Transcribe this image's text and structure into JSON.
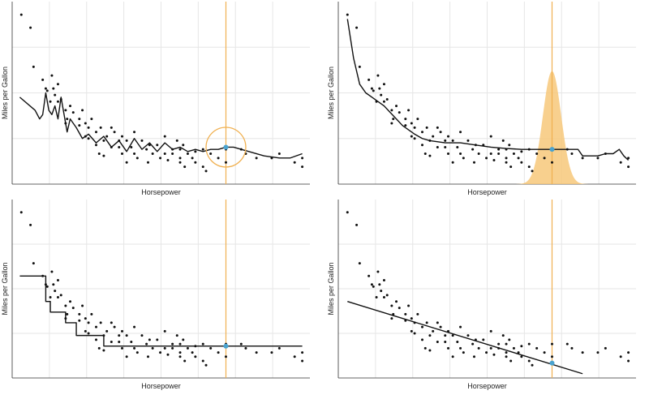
{
  "colors": {
    "points": "#111111",
    "fit_line": "#111111",
    "query_line": "#f0b050",
    "query_point": "#4aa3cf",
    "kernel_fill": "#f7c87a",
    "grid": "#e6e6e6",
    "axis": "#333333"
  },
  "chart_data": [
    {
      "type": "scatter",
      "title": "",
      "xlabel": "Horsepower",
      "ylabel": "Miles per Gallon",
      "xlim": [
        40,
        235
      ],
      "ylim": [
        7,
        49
      ],
      "grid": true,
      "method": "k-nearest neighbours average",
      "query_x": 180,
      "query_y": 15.5,
      "neighbourhood_radius_hp": 13,
      "points": {
        "x": [
          46,
          52,
          54,
          60,
          62,
          63,
          65,
          66,
          67,
          68,
          70,
          70,
          72,
          75,
          75,
          76,
          78,
          80,
          84,
          84,
          86,
          88,
          88,
          90,
          90,
          92,
          95,
          95,
          97,
          98,
          100,
          100,
          102,
          105,
          105,
          107,
          110,
          110,
          112,
          112,
          115,
          115,
          118,
          120,
          120,
          122,
          125,
          128,
          129,
          130,
          132,
          135,
          137,
          140,
          140,
          142,
          145,
          145,
          148,
          150,
          150,
          150,
          152,
          153,
          155,
          158,
          160,
          160,
          165,
          165,
          167,
          170,
          175,
          180,
          180,
          190,
          193,
          200,
          210,
          215,
          225,
          230,
          230
        ],
        "y": [
          46,
          43,
          34,
          31,
          29,
          28.5,
          26,
          32,
          29,
          27.5,
          26,
          30,
          26.5,
          24,
          21,
          22,
          25,
          23.5,
          20.5,
          22,
          24,
          21,
          18,
          20,
          17.5,
          22,
          19,
          16,
          14,
          20,
          17,
          13.5,
          18,
          15.5,
          20,
          19,
          17,
          15.5,
          14,
          18,
          12,
          17,
          15.5,
          14,
          19,
          13,
          17,
          15,
          12,
          16,
          14,
          16,
          13,
          18,
          14,
          12.5,
          15,
          14,
          17,
          15,
          13,
          12,
          16,
          11,
          14,
          13,
          14.5,
          12,
          15,
          11,
          10,
          14,
          13,
          15,
          12,
          15,
          14,
          13,
          13,
          14,
          12,
          13,
          11
        ]
      },
      "fit": {
        "x": [
          45,
          55,
          58,
          60,
          62,
          64,
          66,
          68,
          70,
          72,
          74,
          76,
          78,
          82,
          86,
          90,
          95,
          100,
          105,
          110,
          115,
          120,
          125,
          130,
          135,
          140,
          145,
          150,
          155,
          160,
          165,
          170,
          175,
          180,
          185,
          195,
          205,
          215,
          222,
          230
        ],
        "y": [
          27,
          24,
          22,
          23,
          28,
          24,
          23,
          25,
          22,
          27,
          23,
          19,
          22,
          20,
          17.5,
          18.5,
          16.5,
          18,
          15.5,
          17,
          14.5,
          17.5,
          15,
          16.5,
          14.5,
          16.5,
          15,
          15.5,
          14.5,
          15,
          14.5,
          15,
          15,
          15.5,
          15.5,
          14.5,
          13.5,
          13,
          13,
          14
        ]
      }
    },
    {
      "type": "scatter",
      "title": "",
      "xlabel": "Horsepower",
      "ylabel": "Miles per Gallon",
      "xlim": [
        40,
        235
      ],
      "ylim": [
        7,
        49
      ],
      "grid": true,
      "method": "gaussian kernel weighted average",
      "query_x": 180,
      "query_y": 15,
      "kernel_sd_hp": 6,
      "kernel_peak_y": 33,
      "points": {
        "x": [
          46,
          52,
          54,
          60,
          62,
          63,
          65,
          66,
          67,
          68,
          70,
          70,
          72,
          75,
          75,
          76,
          78,
          80,
          84,
          84,
          86,
          88,
          88,
          90,
          90,
          92,
          95,
          95,
          97,
          98,
          100,
          100,
          102,
          105,
          105,
          107,
          110,
          110,
          112,
          112,
          115,
          115,
          118,
          120,
          120,
          122,
          125,
          128,
          129,
          130,
          132,
          135,
          137,
          140,
          140,
          142,
          145,
          145,
          148,
          150,
          150,
          150,
          152,
          153,
          155,
          158,
          160,
          160,
          165,
          165,
          167,
          170,
          175,
          180,
          180,
          190,
          193,
          200,
          210,
          215,
          225,
          230,
          230
        ],
        "y": [
          46,
          43,
          34,
          31,
          29,
          28.5,
          26,
          32,
          29,
          27.5,
          26,
          30,
          26.5,
          24,
          21,
          22,
          25,
          23.5,
          20.5,
          22,
          24,
          21,
          18,
          20,
          17.5,
          22,
          19,
          16,
          14,
          20,
          17,
          13.5,
          18,
          15.5,
          20,
          19,
          17,
          15.5,
          14,
          18,
          12,
          17,
          15.5,
          14,
          19,
          13,
          17,
          15,
          12,
          16,
          14,
          16,
          13,
          18,
          14,
          12.5,
          15,
          14,
          17,
          15,
          13,
          12,
          16,
          11,
          14,
          13,
          14.5,
          12,
          15,
          11,
          10,
          14,
          13,
          15,
          12,
          15,
          14,
          13,
          13,
          14,
          12,
          13,
          11
        ]
      },
      "fit": {
        "x": [
          46,
          50,
          54,
          58,
          62,
          66,
          70,
          74,
          78,
          82,
          86,
          90,
          95,
          100,
          110,
          120,
          130,
          140,
          150,
          160,
          170,
          180,
          190,
          197,
          200,
          205,
          210,
          215,
          220,
          224,
          227,
          230
        ],
        "y": [
          45,
          36,
          30,
          28,
          27,
          26,
          25,
          23.5,
          22,
          20.5,
          19.5,
          18.5,
          17.5,
          17,
          16.5,
          16.5,
          16,
          15.5,
          15.2,
          15,
          15,
          15,
          15,
          15,
          13.5,
          13.5,
          13.5,
          14,
          14,
          15,
          13.5,
          12.5
        ]
      }
    },
    {
      "type": "scatter",
      "title": "",
      "xlabel": "Horsepower",
      "ylabel": "Miles per Gallon",
      "xlim": [
        40,
        235
      ],
      "ylim": [
        7,
        49
      ],
      "grid": true,
      "method": "piecewise constant bins",
      "query_x": 180,
      "query_y": 14.5,
      "points": {
        "x": [
          46,
          52,
          54,
          60,
          62,
          63,
          65,
          66,
          67,
          68,
          70,
          70,
          72,
          75,
          75,
          76,
          78,
          80,
          84,
          84,
          86,
          88,
          88,
          90,
          90,
          92,
          95,
          95,
          97,
          98,
          100,
          100,
          102,
          105,
          105,
          107,
          110,
          110,
          112,
          112,
          115,
          115,
          118,
          120,
          120,
          122,
          125,
          128,
          129,
          130,
          132,
          135,
          137,
          140,
          140,
          142,
          145,
          145,
          148,
          150,
          150,
          150,
          152,
          153,
          155,
          158,
          160,
          160,
          165,
          165,
          167,
          170,
          175,
          180,
          180,
          190,
          193,
          200,
          210,
          215,
          225,
          230,
          230
        ],
        "y": [
          46,
          43,
          34,
          31,
          29,
          28.5,
          26,
          32,
          29,
          27.5,
          26,
          30,
          26.5,
          24,
          21,
          22,
          25,
          23.5,
          20.5,
          22,
          24,
          21,
          18,
          20,
          17.5,
          22,
          19,
          16,
          14,
          20,
          17,
          13.5,
          18,
          15.5,
          20,
          19,
          17,
          15.5,
          14,
          18,
          12,
          17,
          15.5,
          14,
          19,
          13,
          17,
          15,
          12,
          16,
          14,
          16,
          13,
          18,
          14,
          12.5,
          15,
          14,
          17,
          15,
          13,
          12,
          16,
          11,
          14,
          13,
          14.5,
          12,
          15,
          11,
          10,
          14,
          13,
          15,
          12,
          15,
          14,
          13,
          13,
          14,
          12,
          13,
          11
        ]
      },
      "fit": {
        "x": [
          45,
          62,
          62,
          65,
          65,
          75,
          75,
          82,
          82,
          100,
          100,
          230
        ],
        "y": [
          31,
          31,
          25,
          25,
          22.5,
          22.5,
          20,
          20,
          17,
          17,
          14.5,
          14.5
        ]
      }
    },
    {
      "type": "scatter",
      "title": "",
      "xlabel": "Horsepower",
      "ylabel": "Miles per Gallon",
      "xlim": [
        40,
        235
      ],
      "ylim": [
        7,
        49
      ],
      "grid": true,
      "method": "global linear regression",
      "query_x": 180,
      "query_y": 10.5,
      "points": {
        "x": [
          46,
          52,
          54,
          60,
          62,
          63,
          65,
          66,
          67,
          68,
          70,
          70,
          72,
          75,
          75,
          76,
          78,
          80,
          84,
          84,
          86,
          88,
          88,
          90,
          90,
          92,
          95,
          95,
          97,
          98,
          100,
          100,
          102,
          105,
          105,
          107,
          110,
          110,
          112,
          112,
          115,
          115,
          118,
          120,
          120,
          122,
          125,
          128,
          129,
          130,
          132,
          135,
          137,
          140,
          140,
          142,
          145,
          145,
          148,
          150,
          150,
          150,
          152,
          153,
          155,
          158,
          160,
          160,
          165,
          165,
          167,
          170,
          175,
          180,
          180,
          190,
          193,
          200,
          210,
          215,
          225,
          230,
          230
        ],
        "y": [
          46,
          43,
          34,
          31,
          29,
          28.5,
          26,
          32,
          29,
          27.5,
          26,
          30,
          26.5,
          24,
          21,
          22,
          25,
          23.5,
          20.5,
          22,
          24,
          21,
          18,
          20,
          17.5,
          22,
          19,
          16,
          14,
          20,
          17,
          13.5,
          18,
          15.5,
          20,
          19,
          17,
          15.5,
          14,
          18,
          12,
          17,
          15.5,
          14,
          19,
          13,
          17,
          15,
          12,
          16,
          14,
          16,
          13,
          18,
          14,
          12.5,
          15,
          14,
          17,
          15,
          13,
          12,
          16,
          11,
          14,
          13,
          14.5,
          12,
          15,
          11,
          10,
          14,
          13,
          15,
          12,
          15,
          14,
          13,
          13,
          14,
          12,
          13,
          11
        ]
      },
      "fit": {
        "x": [
          46,
          200
        ],
        "y": [
          25,
          8
        ]
      }
    }
  ]
}
